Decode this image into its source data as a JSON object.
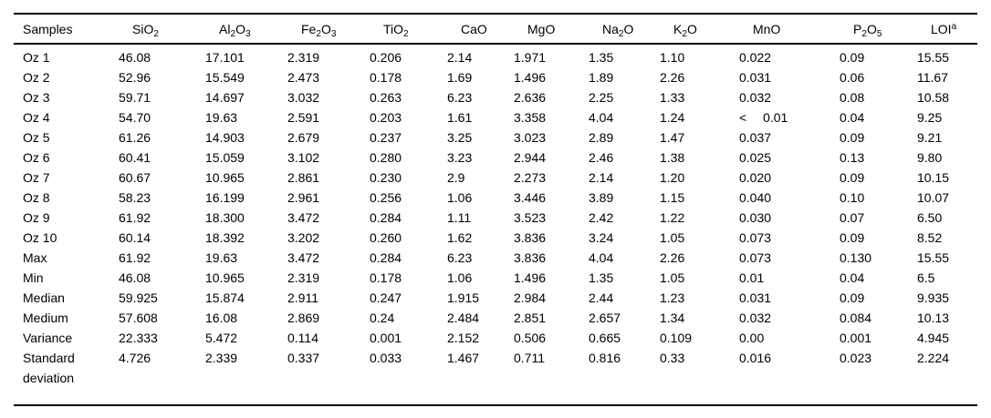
{
  "table": {
    "columns": [
      {
        "id": "samples",
        "label": "Samples",
        "chem": false
      },
      {
        "id": "sio2",
        "label": "SiO2",
        "chem": true
      },
      {
        "id": "al2o3",
        "label": "Al2O3",
        "chem": true
      },
      {
        "id": "fe2o3",
        "label": "Fe2O3",
        "chem": true
      },
      {
        "id": "tio2",
        "label": "TiO2",
        "chem": true
      },
      {
        "id": "cao",
        "label": "CaO",
        "chem": true
      },
      {
        "id": "mgo",
        "label": "MgO",
        "chem": true
      },
      {
        "id": "na2o",
        "label": "Na2O",
        "chem": true
      },
      {
        "id": "k2o",
        "label": "K2O",
        "chem": true
      },
      {
        "id": "mno",
        "label": "MnO",
        "chem": true
      },
      {
        "id": "p2o5",
        "label": "P2O5",
        "chem": true
      },
      {
        "id": "loi",
        "label": "LOI^a",
        "chem": true
      }
    ],
    "rows": [
      {
        "label": "Oz 1",
        "values": [
          "46.08",
          "17.101",
          "2.319",
          "0.206",
          "2.14",
          "1.971",
          "1.35",
          "1.10",
          "0.022",
          "0.09",
          "15.55"
        ]
      },
      {
        "label": "Oz 2",
        "values": [
          "52.96",
          "15.549",
          "2.473",
          "0.178",
          "1.69",
          "1.496",
          "1.89",
          "2.26",
          "0.031",
          "0.06",
          "11.67"
        ]
      },
      {
        "label": "Oz 3",
        "values": [
          "59.71",
          "14.697",
          "3.032",
          "0.263",
          "6.23",
          "2.636",
          "2.25",
          "1.33",
          "0.032",
          "0.08",
          "10.58"
        ]
      },
      {
        "label": "Oz 4",
        "values": [
          "54.70",
          "19.63",
          "2.591",
          "0.203",
          "1.61",
          "3.358",
          "4.04",
          "1.24",
          "<  0.01",
          "0.04",
          "9.25"
        ]
      },
      {
        "label": "Oz 5",
        "values": [
          "61.26",
          "14.903",
          "2.679",
          "0.237",
          "3.25",
          "3.023",
          "2.89",
          "1.47",
          "0.037",
          "0.09",
          "9.21"
        ]
      },
      {
        "label": "Oz 6",
        "values": [
          "60.41",
          "15.059",
          "3.102",
          "0.280",
          "3.23",
          "2.944",
          "2.46",
          "1.38",
          "0.025",
          "0.13",
          "9.80"
        ]
      },
      {
        "label": "Oz 7",
        "values": [
          "60.67",
          "10.965",
          "2.861",
          "0.230",
          "2.9",
          "2.273",
          "2.14",
          "1.20",
          "0.020",
          "0.09",
          "10.15"
        ]
      },
      {
        "label": "Oz 8",
        "values": [
          "58.23",
          "16.199",
          "2.961",
          "0.256",
          "1.06",
          "3.446",
          "3.89",
          "1.15",
          "0.040",
          "0.10",
          "10.07"
        ]
      },
      {
        "label": "Oz 9",
        "values": [
          "61.92",
          "18.300",
          "3.472",
          "0.284",
          "1.11",
          "3.523",
          "2.42",
          "1.22",
          "0.030",
          "0.07",
          "6.50"
        ]
      },
      {
        "label": "Oz 10",
        "values": [
          "60.14",
          "18.392",
          "3.202",
          "0.260",
          "1.62",
          "3.836",
          "3.24",
          "1.05",
          "0.073",
          "0.09",
          "8.52"
        ]
      },
      {
        "label": "Max",
        "values": [
          "61.92",
          "19.63",
          "3.472",
          "0.284",
          "6.23",
          "3.836",
          "4.04",
          "2.26",
          "0.073",
          "0.130",
          "15.55"
        ]
      },
      {
        "label": "Min",
        "values": [
          "46.08",
          "10.965",
          "2.319",
          "0.178",
          "1.06",
          "1.496",
          "1.35",
          "1.05",
          "0.01",
          "0.04",
          "6.5"
        ]
      },
      {
        "label": "Median",
        "values": [
          "59.925",
          "15.874",
          "2.911",
          "0.247",
          "1.915",
          "2.984",
          "2.44",
          "1.23",
          "0.031",
          "0.09",
          "9.935"
        ]
      },
      {
        "label": "Medium",
        "values": [
          "57.608",
          "16.08",
          "2.869",
          "0.24",
          "2.484",
          "2.851",
          "2.657",
          "1.34",
          "0.032",
          "0.084",
          "10.13"
        ]
      },
      {
        "label": "Variance",
        "values": [
          "22.333",
          "5.472",
          "0.114",
          "0.001",
          "2.152",
          "0.506",
          "0.665",
          "0.109",
          "0.00",
          "0.001",
          "4.945"
        ]
      },
      {
        "label": "Standard deviation",
        "values": [
          "4.726",
          "2.339",
          "0.337",
          "0.033",
          "1.467",
          "0.711",
          "0.816",
          "0.33",
          "0.016",
          "0.023",
          "2.224"
        ]
      }
    ]
  }
}
